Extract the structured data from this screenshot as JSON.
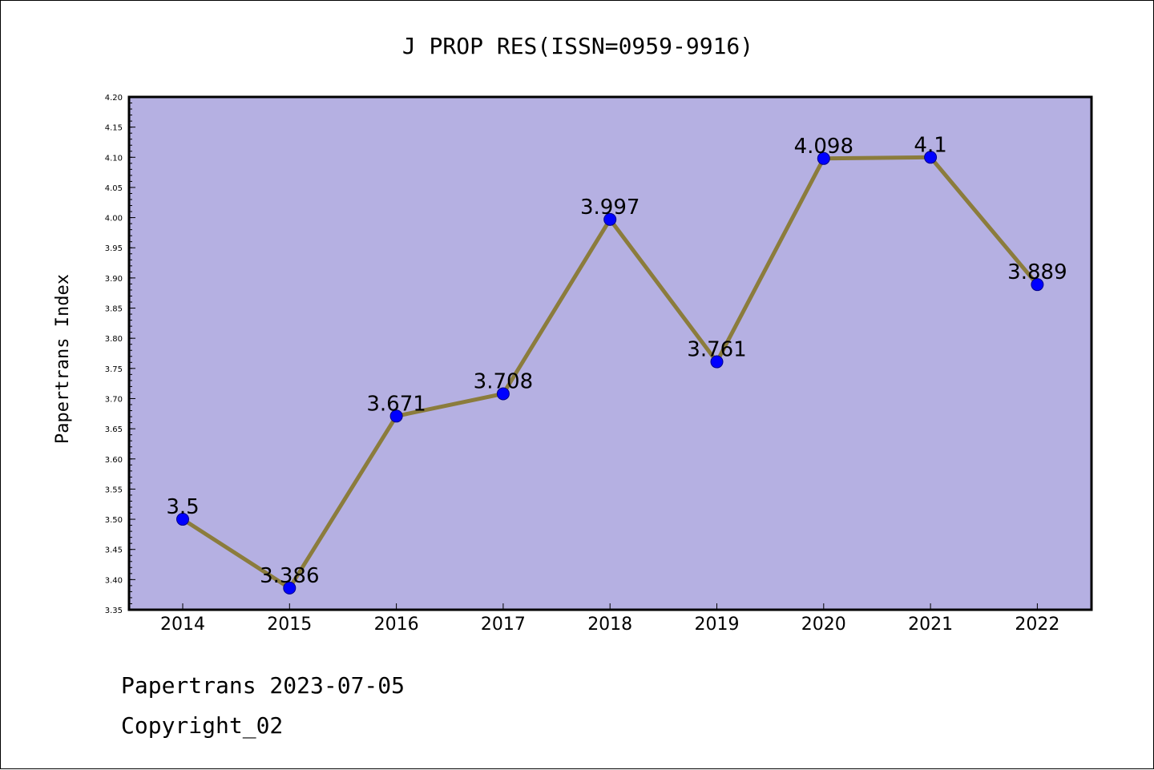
{
  "footer": {
    "line1": "Papertrans 2023-07-05",
    "line2": "Copyright_02"
  },
  "colors": {
    "plot_background": "#b5b0e2",
    "line": "#8b7c3c",
    "marker": "#0000ff",
    "marker_edge": "#00008b"
  },
  "chart_data": {
    "type": "line",
    "title": "J PROP RES(ISSN=0959-9916)",
    "xlabel": "",
    "ylabel": "Papertrans Index",
    "categories": [
      "2014",
      "2015",
      "2016",
      "2017",
      "2018",
      "2019",
      "2020",
      "2021",
      "2022"
    ],
    "series": [
      {
        "values": [
          3.5,
          3.386,
          3.671,
          3.708,
          3.997,
          3.761,
          4.098,
          4.1,
          3.889
        ],
        "labels": [
          "3.5",
          "3.386",
          "3.671",
          "3.708",
          "3.997",
          "3.761",
          "4.098",
          "4.1",
          "3.889"
        ]
      }
    ],
    "ylim": [
      3.35,
      4.2
    ],
    "yticks": [
      "3.35",
      "3.40",
      "3.45",
      "3.50",
      "3.55",
      "3.60",
      "3.65",
      "3.70",
      "3.75",
      "3.80",
      "3.85",
      "3.90",
      "3.95",
      "4.00",
      "4.05",
      "4.10",
      "4.15",
      "4.20"
    ],
    "grid": false,
    "legend": "none"
  }
}
